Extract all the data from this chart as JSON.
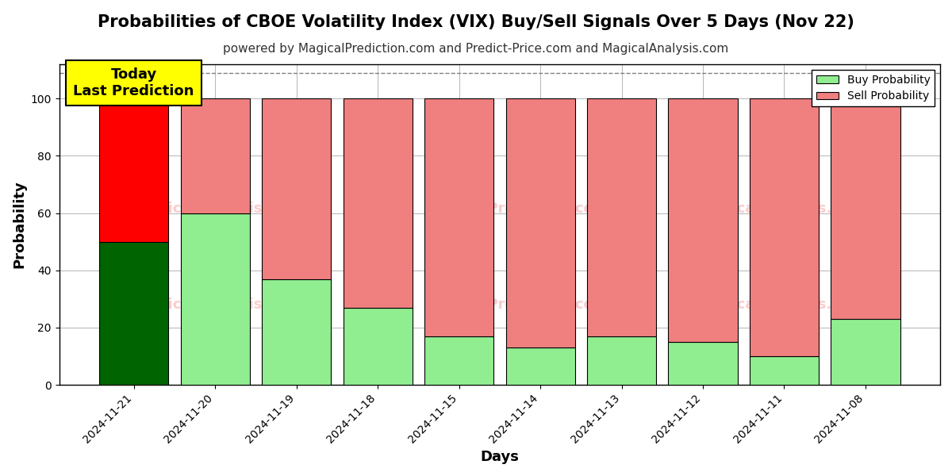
{
  "title": "Probabilities of CBOE Volatility Index (VIX) Buy/Sell Signals Over 5 Days (Nov 22)",
  "subtitle": "powered by MagicalPrediction.com and Predict-Price.com and MagicalAnalysis.com",
  "xlabel": "Days",
  "ylabel": "Probability",
  "categories": [
    "2024-11-21",
    "2024-11-20",
    "2024-11-19",
    "2024-11-18",
    "2024-11-15",
    "2024-11-14",
    "2024-11-13",
    "2024-11-12",
    "2024-11-11",
    "2024-11-08"
  ],
  "buy_values": [
    50,
    60,
    37,
    27,
    17,
    13,
    17,
    15,
    10,
    23
  ],
  "sell_values": [
    50,
    40,
    63,
    73,
    83,
    87,
    83,
    85,
    90,
    77
  ],
  "buy_colors": [
    "#006400",
    "#90EE90",
    "#90EE90",
    "#90EE90",
    "#90EE90",
    "#90EE90",
    "#90EE90",
    "#90EE90",
    "#90EE90",
    "#90EE90"
  ],
  "sell_colors": [
    "#FF0000",
    "#F08080",
    "#F08080",
    "#F08080",
    "#F08080",
    "#F08080",
    "#F08080",
    "#F08080",
    "#F08080",
    "#F08080"
  ],
  "today_annotation": "Today\nLast Prediction",
  "today_bg_color": "#FFFF00",
  "today_text_color": "#000000",
  "legend_buy_label": "Buy Probability",
  "legend_sell_label": "Sell Probability",
  "legend_buy_color": "#90EE90",
  "legend_sell_color": "#F08080",
  "ylim": [
    0,
    112
  ],
  "yticks": [
    0,
    20,
    40,
    60,
    80,
    100
  ],
  "dashed_line_y": 109,
  "background_color": "#ffffff",
  "grid_color": "#aaaaaa",
  "title_fontsize": 15,
  "subtitle_fontsize": 11,
  "axis_label_fontsize": 13,
  "tick_fontsize": 10,
  "bar_width": 0.85
}
